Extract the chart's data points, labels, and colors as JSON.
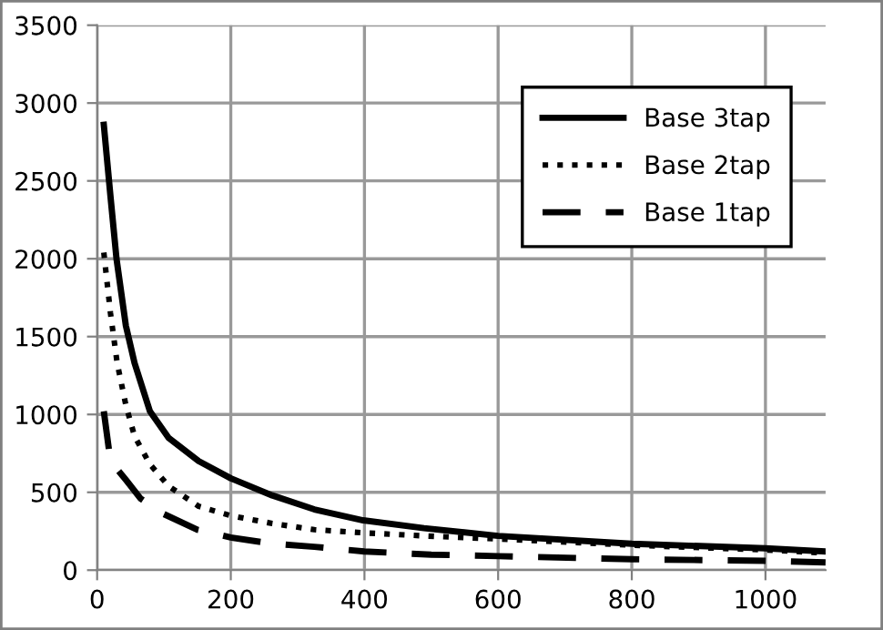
{
  "chart_data": {
    "type": "line",
    "xlim": [
      0,
      1090
    ],
    "xticks": [
      0,
      200,
      400,
      600,
      800,
      1000
    ],
    "ylim": [
      0,
      3500
    ],
    "yticks": [
      0,
      500,
      1000,
      1500,
      2000,
      2500,
      3000,
      3500
    ],
    "grid": true,
    "legend": "right",
    "marker": "none",
    "series": [
      {
        "name": "Base 3tap",
        "color": "#000000",
        "line_style": "solid",
        "x": [
          10,
          20,
          29,
          43,
          56,
          79,
          107,
          152,
          200,
          262,
          325,
          398,
          489,
          600,
          800,
          1000,
          1090
        ],
        "values": [
          2860,
          2400,
          2000,
          1570,
          1330,
          1020,
          850,
          700,
          590,
          480,
          390,
          320,
          270,
          220,
          170,
          140,
          120
        ]
      },
      {
        "name": "Base 2tap",
        "color": "#000000",
        "line_style": "dotted",
        "x": [
          10,
          20,
          30,
          43,
          56,
          79,
          107,
          152,
          200,
          262,
          325,
          398,
          489,
          600,
          800,
          1000,
          1090
        ],
        "values": [
          2040,
          1650,
          1330,
          1060,
          860,
          680,
          540,
          410,
          350,
          300,
          260,
          240,
          220,
          200,
          160,
          130,
          110
        ]
      },
      {
        "name": "Base 1tap",
        "color": "#000000",
        "line_style": "dashed",
        "x": [
          10,
          20,
          43,
          65,
          100,
          150,
          200,
          262,
          325,
          400,
          500,
          600,
          800,
          1000,
          1090
        ],
        "values": [
          1020,
          700,
          580,
          460,
          360,
          260,
          210,
          170,
          150,
          120,
          100,
          90,
          70,
          60,
          50
        ]
      }
    ]
  }
}
